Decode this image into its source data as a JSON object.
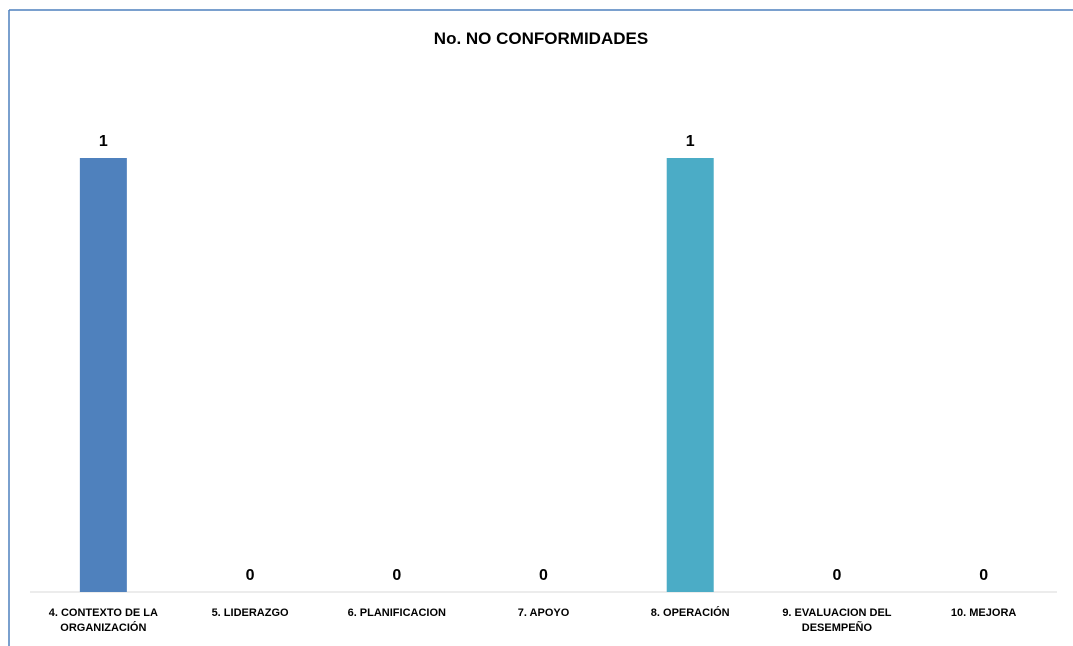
{
  "chart_data": {
    "type": "bar",
    "title": "No. NO CONFORMIDADES",
    "xlabel": "",
    "ylabel": "",
    "categories": [
      [
        "4. CONTEXTO DE LA",
        "ORGANIZACIÓN"
      ],
      [
        "5. LIDERAZGO"
      ],
      [
        "6. PLANIFICACION"
      ],
      [
        "7. APOYO"
      ],
      [
        "8. OPERACIÓN"
      ],
      [
        "9. EVALUACION DEL",
        "DESEMPEÑO"
      ],
      [
        "10. MEJORA"
      ]
    ],
    "values": [
      1,
      0,
      0,
      0,
      1,
      0,
      0
    ],
    "data_labels": [
      "1",
      "0",
      "0",
      "0",
      "1",
      "0",
      "0"
    ],
    "bar_colors": [
      "#4F81BD",
      "#4F81BD",
      "#4F81BD",
      "#4F81BD",
      "#4BACC6",
      "#4F81BD",
      "#4F81BD"
    ],
    "ylim": [
      0,
      1
    ],
    "grid": false,
    "legend": "none"
  },
  "colors": {
    "frame_border": "#4F81BD",
    "axis": "#d9d9d9",
    "text": "#000000"
  }
}
